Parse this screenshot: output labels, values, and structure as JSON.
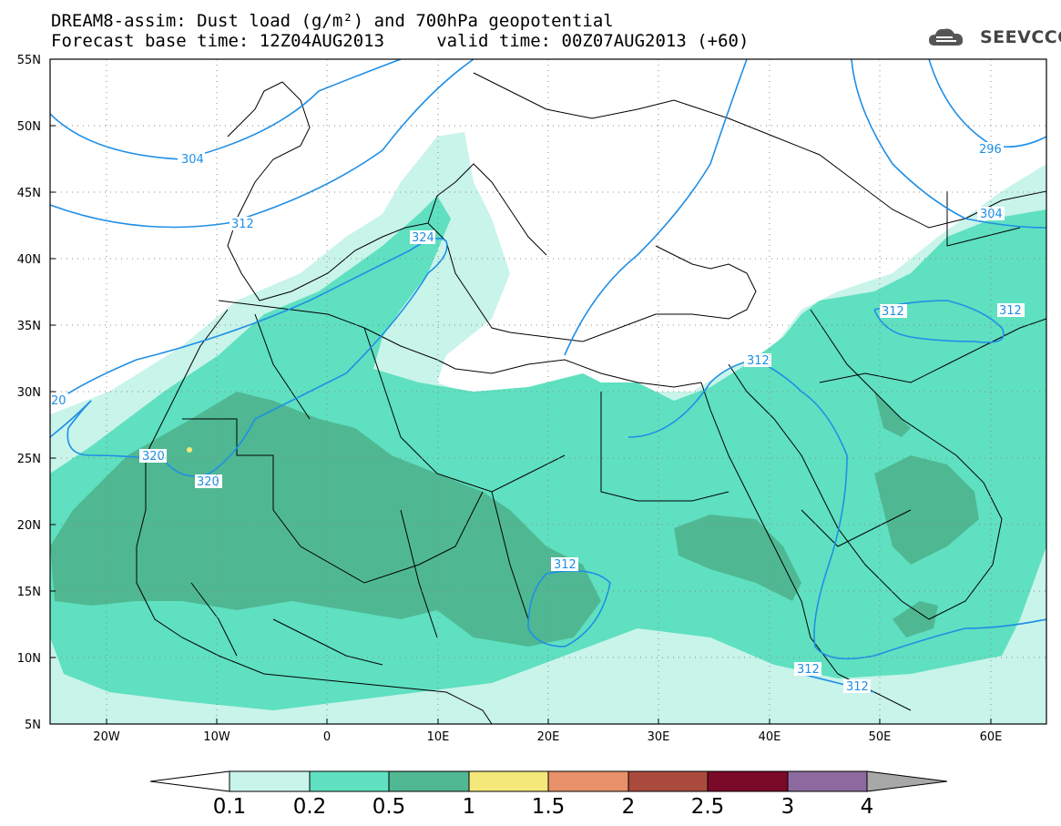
{
  "header": {
    "title_line1": "DREAM8-assim: Dust load (g/m²) and 700hPa geopotential",
    "title_line2": "Forecast base time: 12Z04AUG2013     valid time: 00Z07AUG2013 (+60)"
  },
  "logo": {
    "text": "SEEVCCC",
    "icon": "cloud-logo-icon"
  },
  "axes": {
    "lat_labels": [
      "55N",
      "50N",
      "45N",
      "40N",
      "35N",
      "30N",
      "25N",
      "20N",
      "15N",
      "10N",
      "5N"
    ],
    "lon_labels": [
      "20W",
      "10W",
      "0",
      "10E",
      "20E",
      "30E",
      "40E",
      "50E",
      "60E"
    ]
  },
  "contour_labels": [
    {
      "text": "304"
    },
    {
      "text": "312"
    },
    {
      "text": "324"
    },
    {
      "text": "20"
    },
    {
      "text": "320"
    },
    {
      "text": "320"
    },
    {
      "text": "312"
    },
    {
      "text": "312"
    },
    {
      "text": "312"
    },
    {
      "text": "312"
    },
    {
      "text": "312"
    },
    {
      "text": "296"
    },
    {
      "text": "304"
    },
    {
      "text": "312"
    }
  ],
  "colorbar": {
    "labels": [
      "0.1",
      "0.2",
      "0.5",
      "1",
      "1.5",
      "2",
      "2.5",
      "3",
      "4"
    ],
    "colors": [
      "#c8f4ea",
      "#5fe0c0",
      "#4fb892",
      "#f4e87a",
      "#e89068",
      "#aa4a3c",
      "#7a0a28",
      "#8c6aa0"
    ],
    "under_color": "#ffffff",
    "over_color": "#a8a8a8"
  },
  "colors": {
    "dust_low": "#c8f4ea",
    "dust_mid": "#5fe0c0",
    "dust_high": "#4fb892",
    "contour": "#1f8fe6",
    "border": "#000000"
  }
}
